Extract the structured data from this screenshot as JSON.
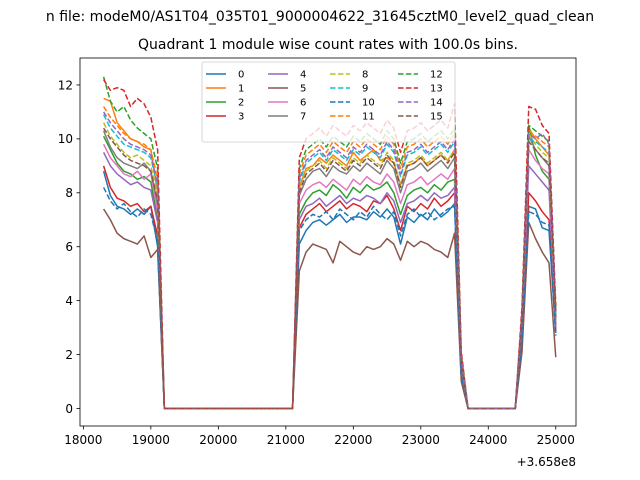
{
  "figure": {
    "suptitle": "n file: modeM0/AS1T04_035T01_9000004622_31645cztM0_level2_quad_clean",
    "title": "Quadrant 1 module wise count rates with 100.0s bins.",
    "offset_text": "+3.658e8"
  },
  "chart_data": {
    "type": "line",
    "title": "Quadrant 1 module wise count rates with 100.0s bins.",
    "xlabel": "",
    "ylabel": "",
    "xlim": [
      17950,
      25300
    ],
    "ylim": [
      -0.65,
      13.0
    ],
    "xticks": [
      18000,
      19000,
      20000,
      21000,
      22000,
      23000,
      24000,
      25000
    ],
    "yticks": [
      0,
      2,
      4,
      6,
      8,
      10,
      12
    ],
    "x_offset": 365800000,
    "grid": false,
    "legend": {
      "placement": "upper center",
      "columns": 4
    },
    "x": [
      18300,
      18400,
      18500,
      18600,
      18700,
      18800,
      18900,
      19000,
      19100,
      19200,
      19300,
      19400,
      19500,
      19600,
      19700,
      19800,
      19900,
      20000,
      20100,
      20200,
      20300,
      20400,
      20500,
      20600,
      20700,
      20800,
      20900,
      21000,
      21100,
      21200,
      21300,
      21400,
      21500,
      21600,
      21700,
      21800,
      21900,
      22000,
      22100,
      22200,
      22300,
      22400,
      22500,
      22600,
      22700,
      22800,
      22900,
      23000,
      23100,
      23200,
      23300,
      23400,
      23500,
      23600,
      23700,
      23800,
      23900,
      24000,
      24100,
      24200,
      24300,
      24400,
      24500,
      24600,
      24700,
      24800,
      24900,
      25000
    ],
    "series": [
      {
        "name": "0",
        "color": "#1f77b4",
        "dash": false,
        "values": [
          8.8,
          7.9,
          7.5,
          7.4,
          7.2,
          7.4,
          7.2,
          7.5,
          6.0,
          0,
          0,
          0,
          0,
          0,
          0,
          0,
          0,
          0,
          0,
          0,
          0,
          0,
          0,
          0,
          0,
          0,
          0,
          0,
          0,
          6.1,
          6.6,
          6.9,
          7.0,
          6.8,
          7.0,
          7.2,
          6.9,
          7.1,
          7.1,
          7.0,
          7.3,
          7.1,
          7.4,
          7.1,
          6.1,
          7.1,
          6.9,
          7.2,
          7.0,
          7.4,
          7.1,
          7.3,
          7.6,
          1.2,
          0,
          0,
          0,
          0,
          0,
          0,
          0,
          0,
          2.5,
          7.5,
          7.4,
          6.7,
          6.6,
          2.8
        ]
      },
      {
        "name": "1",
        "color": "#ff7f0e",
        "dash": false,
        "values": [
          11.5,
          11.4,
          10.6,
          10.3,
          10.0,
          9.9,
          9.7,
          9.6,
          8.0,
          0,
          0,
          0,
          0,
          0,
          0,
          0,
          0,
          0,
          0,
          0,
          0,
          0,
          0,
          0,
          0,
          0,
          0,
          0,
          0,
          8.2,
          8.9,
          9.0,
          9.3,
          9.1,
          9.4,
          9.2,
          9.0,
          9.5,
          9.2,
          9.4,
          9.6,
          9.2,
          9.3,
          9.1,
          8.3,
          9.0,
          9.1,
          9.3,
          9.0,
          9.2,
          9.4,
          9.2,
          9.6,
          1.7,
          0,
          0,
          0,
          0,
          0,
          0,
          0,
          0,
          3.2,
          10.4,
          10.0,
          9.7,
          9.4,
          3.5
        ]
      },
      {
        "name": "2",
        "color": "#2ca02c",
        "dash": false,
        "values": [
          10.1,
          9.6,
          9.1,
          8.8,
          8.7,
          8.5,
          8.6,
          8.4,
          7.0,
          0,
          0,
          0,
          0,
          0,
          0,
          0,
          0,
          0,
          0,
          0,
          0,
          0,
          0,
          0,
          0,
          0,
          0,
          0,
          0,
          7.2,
          7.7,
          8.0,
          8.1,
          7.9,
          8.3,
          8.1,
          7.8,
          8.2,
          8.0,
          8.3,
          8.1,
          8.2,
          8.4,
          8.0,
          7.2,
          7.9,
          8.1,
          8.2,
          8.0,
          8.3,
          8.1,
          8.4,
          8.5,
          1.5,
          0,
          0,
          0,
          0,
          0,
          0,
          0,
          0,
          2.9,
          10.5,
          9.4,
          8.8,
          8.5,
          3.1
        ]
      },
      {
        "name": "3",
        "color": "#d62728",
        "dash": false,
        "values": [
          9.0,
          8.2,
          7.8,
          7.7,
          7.5,
          7.6,
          7.3,
          7.5,
          6.4,
          0,
          0,
          0,
          0,
          0,
          0,
          0,
          0,
          0,
          0,
          0,
          0,
          0,
          0,
          0,
          0,
          0,
          0,
          0,
          0,
          6.7,
          7.2,
          7.4,
          7.6,
          7.3,
          7.5,
          7.7,
          7.4,
          7.6,
          7.5,
          7.3,
          7.7,
          7.6,
          7.9,
          7.4,
          6.6,
          7.5,
          7.3,
          7.6,
          7.4,
          7.8,
          7.5,
          7.7,
          8.0,
          1.3,
          0,
          0,
          0,
          0,
          0,
          0,
          0,
          0,
          2.7,
          8.0,
          7.7,
          7.3,
          7.0,
          2.9
        ]
      },
      {
        "name": "4",
        "color": "#9467bd",
        "dash": false,
        "values": [
          9.5,
          9.0,
          8.7,
          8.5,
          8.3,
          8.4,
          8.2,
          8.1,
          6.9,
          0,
          0,
          0,
          0,
          0,
          0,
          0,
          0,
          0,
          0,
          0,
          0,
          0,
          0,
          0,
          0,
          0,
          0,
          0,
          0,
          7.0,
          7.5,
          7.6,
          7.8,
          7.5,
          7.7,
          7.9,
          7.6,
          7.8,
          7.7,
          7.9,
          7.8,
          7.6,
          8.0,
          7.7,
          6.9,
          7.6,
          7.7,
          7.9,
          7.7,
          8.0,
          7.8,
          7.9,
          8.2,
          1.4,
          0,
          0,
          0,
          0,
          0,
          0,
          0,
          0,
          2.8,
          9.0,
          8.7,
          8.4,
          8.1,
          3.0
        ]
      },
      {
        "name": "5",
        "color": "#8c564b",
        "dash": false,
        "values": [
          7.4,
          7.0,
          6.5,
          6.3,
          6.2,
          6.1,
          6.4,
          5.6,
          5.9,
          0,
          0,
          0,
          0,
          0,
          0,
          0,
          0,
          0,
          0,
          0,
          0,
          0,
          0,
          0,
          0,
          0,
          0,
          0,
          0,
          5.1,
          5.8,
          6.1,
          6.0,
          5.9,
          5.4,
          6.2,
          6.0,
          5.8,
          5.7,
          6.0,
          5.9,
          6.0,
          6.3,
          6.1,
          5.5,
          6.2,
          6.0,
          6.2,
          6.1,
          5.9,
          5.8,
          5.6,
          6.5,
          1.0,
          0,
          0,
          0,
          0,
          0,
          0,
          0,
          0,
          2.1,
          6.9,
          6.3,
          5.8,
          5.4,
          1.9
        ]
      },
      {
        "name": "6",
        "color": "#e377c2",
        "dash": false,
        "values": [
          9.8,
          9.3,
          9.0,
          8.7,
          8.6,
          8.8,
          8.5,
          8.7,
          7.3,
          0,
          0,
          0,
          0,
          0,
          0,
          0,
          0,
          0,
          0,
          0,
          0,
          0,
          0,
          0,
          0,
          0,
          0,
          0,
          0,
          7.6,
          8.1,
          8.3,
          8.4,
          8.2,
          8.5,
          8.3,
          8.1,
          8.5,
          8.3,
          8.6,
          8.4,
          8.3,
          8.7,
          8.4,
          7.6,
          8.3,
          8.4,
          8.6,
          8.3,
          8.5,
          8.7,
          8.5,
          8.9,
          1.5,
          0,
          0,
          0,
          0,
          0,
          0,
          0,
          0,
          3.0,
          9.6,
          9.2,
          8.9,
          8.7,
          3.2
        ]
      },
      {
        "name": "7",
        "color": "#7f7f7f",
        "dash": false,
        "values": [
          10.3,
          9.7,
          9.3,
          9.1,
          9.0,
          8.9,
          9.1,
          8.8,
          7.6,
          0,
          0,
          0,
          0,
          0,
          0,
          0,
          0,
          0,
          0,
          0,
          0,
          0,
          0,
          0,
          0,
          0,
          0,
          0,
          0,
          7.9,
          8.5,
          8.8,
          8.9,
          8.6,
          9.0,
          8.8,
          8.7,
          9.0,
          8.8,
          9.1,
          8.9,
          8.7,
          9.2,
          8.9,
          8.0,
          8.8,
          8.9,
          9.1,
          8.8,
          9.0,
          9.2,
          8.9,
          9.3,
          1.6,
          0,
          0,
          0,
          0,
          0,
          0,
          0,
          0,
          3.1,
          10.1,
          9.6,
          9.3,
          9.0,
          3.3
        ]
      },
      {
        "name": "8",
        "color": "#bcbd22",
        "dash": true,
        "values": [
          10.6,
          10.1,
          9.8,
          9.5,
          9.3,
          9.4,
          9.2,
          9.0,
          7.9,
          0,
          0,
          0,
          0,
          0,
          0,
          0,
          0,
          0,
          0,
          0,
          0,
          0,
          0,
          0,
          0,
          0,
          0,
          0,
          0,
          8.1,
          8.8,
          9.0,
          9.2,
          8.9,
          9.3,
          9.1,
          8.9,
          9.3,
          9.1,
          9.4,
          9.2,
          9.0,
          9.5,
          9.2,
          8.3,
          9.1,
          9.2,
          9.4,
          9.1,
          9.3,
          9.5,
          9.2,
          9.6,
          1.7,
          0,
          0,
          0,
          0,
          0,
          0,
          0,
          0,
          3.3,
          10.2,
          9.8,
          9.5,
          9.3,
          3.4
        ]
      },
      {
        "name": "9",
        "color": "#17becf",
        "dash": true,
        "values": [
          10.9,
          10.4,
          10.1,
          9.8,
          9.7,
          9.6,
          9.5,
          9.3,
          8.2,
          0,
          0,
          0,
          0,
          0,
          0,
          0,
          0,
          0,
          0,
          0,
          0,
          0,
          0,
          0,
          0,
          0,
          0,
          0,
          0,
          8.4,
          9.1,
          9.3,
          9.5,
          9.2,
          9.6,
          9.4,
          9.2,
          9.6,
          9.4,
          9.7,
          9.5,
          9.3,
          9.8,
          9.5,
          8.6,
          9.4,
          9.5,
          9.7,
          9.4,
          9.6,
          9.8,
          9.5,
          9.9,
          1.8,
          0,
          0,
          0,
          0,
          0,
          0,
          0,
          0,
          3.4,
          10.0,
          9.9,
          9.7,
          9.5,
          3.5
        ]
      },
      {
        "name": "10",
        "color": "#1f77b4",
        "dash": true,
        "values": [
          8.2,
          7.7,
          7.4,
          7.6,
          7.3,
          7.1,
          7.4,
          7.2,
          6.2,
          0,
          0,
          0,
          0,
          0,
          0,
          0,
          0,
          0,
          0,
          0,
          0,
          0,
          0,
          0,
          0,
          0,
          0,
          0,
          0,
          6.6,
          7.0,
          7.2,
          7.1,
          7.3,
          7.0,
          7.4,
          7.2,
          7.0,
          7.3,
          7.1,
          7.5,
          7.2,
          7.0,
          7.3,
          6.4,
          7.2,
          7.4,
          7.1,
          7.3,
          7.0,
          7.2,
          7.4,
          7.5,
          1.2,
          0,
          0,
          0,
          0,
          0,
          0,
          0,
          0,
          2.5,
          7.3,
          7.2,
          6.9,
          6.8,
          2.7
        ]
      },
      {
        "name": "11",
        "color": "#ff7f0e",
        "dash": true,
        "values": [
          11.2,
          10.8,
          10.5,
          10.2,
          10.0,
          9.9,
          9.8,
          9.6,
          8.5,
          0,
          0,
          0,
          0,
          0,
          0,
          0,
          0,
          0,
          0,
          0,
          0,
          0,
          0,
          0,
          0,
          0,
          0,
          0,
          0,
          8.7,
          9.4,
          9.6,
          9.8,
          9.5,
          9.9,
          9.7,
          9.5,
          9.9,
          9.7,
          10.0,
          9.8,
          9.6,
          10.1,
          9.8,
          8.9,
          9.7,
          9.8,
          10.0,
          9.7,
          9.9,
          10.1,
          9.8,
          10.2,
          1.9,
          0,
          0,
          0,
          0,
          0,
          0,
          0,
          0,
          3.5,
          10.3,
          10.1,
          9.9,
          9.7,
          3.6
        ]
      },
      {
        "name": "12",
        "color": "#2ca02c",
        "dash": true,
        "values": [
          12.3,
          11.4,
          11.0,
          11.2,
          10.7,
          10.4,
          10.2,
          10.0,
          8.9,
          0,
          0,
          0,
          0,
          0,
          0,
          0,
          0,
          0,
          0,
          0,
          0,
          0,
          0,
          0,
          0,
          0,
          0,
          0,
          0,
          8.9,
          9.6,
          9.8,
          10.0,
          9.7,
          10.1,
          9.9,
          9.7,
          10.1,
          9.9,
          10.2,
          10.0,
          9.8,
          10.3,
          10.0,
          9.1,
          9.9,
          10.0,
          10.2,
          9.9,
          10.1,
          10.3,
          10.0,
          10.4,
          2.0,
          0,
          0,
          0,
          0,
          0,
          0,
          0,
          0,
          3.6,
          10.5,
          10.3,
          10.1,
          9.9,
          3.7
        ]
      },
      {
        "name": "13",
        "color": "#d62728",
        "dash": true,
        "values": [
          12.2,
          11.8,
          11.9,
          11.8,
          11.2,
          11.5,
          11.3,
          10.8,
          9.6,
          0,
          0,
          0,
          0,
          0,
          0,
          0,
          0,
          0,
          0,
          0,
          0,
          0,
          0,
          0,
          0,
          0,
          0,
          0,
          0,
          9.3,
          10.0,
          10.2,
          10.4,
          10.1,
          10.5,
          10.3,
          10.1,
          10.5,
          10.3,
          10.6,
          10.4,
          10.2,
          10.7,
          10.4,
          9.5,
          10.3,
          10.4,
          10.6,
          10.3,
          10.5,
          10.7,
          10.4,
          11.3,
          2.1,
          0,
          0,
          0,
          0,
          0,
          0,
          0,
          0,
          3.8,
          11.2,
          11.1,
          10.5,
          10.2,
          3.8
        ]
      },
      {
        "name": "14",
        "color": "#9467bd",
        "dash": true,
        "values": [
          11.0,
          10.6,
          10.3,
          10.0,
          9.8,
          9.7,
          9.6,
          9.4,
          8.3,
          0,
          0,
          0,
          0,
          0,
          0,
          0,
          0,
          0,
          0,
          0,
          0,
          0,
          0,
          0,
          0,
          0,
          0,
          0,
          0,
          8.5,
          9.2,
          9.4,
          9.6,
          9.3,
          9.7,
          9.5,
          9.3,
          9.7,
          9.5,
          9.8,
          9.6,
          9.4,
          9.9,
          9.6,
          8.7,
          9.5,
          9.6,
          9.8,
          9.5,
          9.7,
          9.9,
          9.6,
          10.0,
          1.8,
          0,
          0,
          0,
          0,
          0,
          0,
          0,
          0,
          3.4,
          10.2,
          10.0,
          10.2,
          9.8,
          3.6
        ]
      },
      {
        "name": "15",
        "color": "#8c564b",
        "dash": true,
        "values": [
          10.4,
          10.0,
          9.7,
          9.4,
          9.2,
          9.1,
          9.0,
          8.8,
          7.7,
          0,
          0,
          0,
          0,
          0,
          0,
          0,
          0,
          0,
          0,
          0,
          0,
          0,
          0,
          0,
          0,
          0,
          0,
          0,
          0,
          8.0,
          8.7,
          8.9,
          9.1,
          8.8,
          9.2,
          9.0,
          8.8,
          9.2,
          9.0,
          9.3,
          9.1,
          8.9,
          9.4,
          9.1,
          8.2,
          9.0,
          9.1,
          9.3,
          9.0,
          9.2,
          9.4,
          9.1,
          9.5,
          1.6,
          0,
          0,
          0,
          0,
          0,
          0,
          0,
          0,
          3.2,
          9.9,
          9.6,
          9.3,
          9.1,
          3.4
        ]
      }
    ]
  }
}
